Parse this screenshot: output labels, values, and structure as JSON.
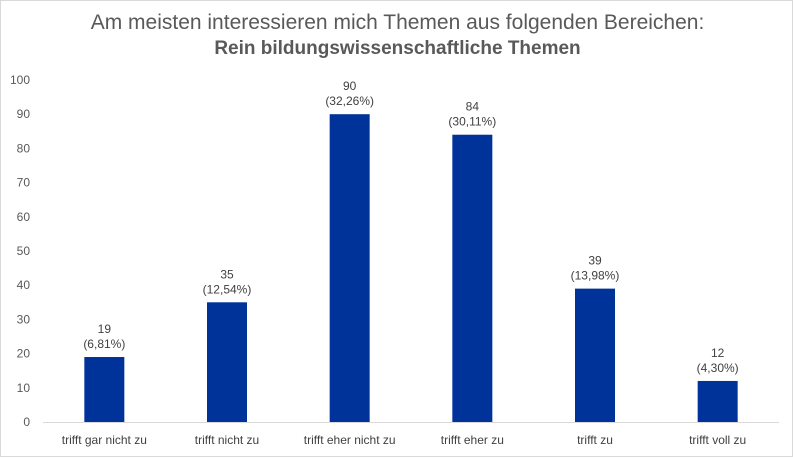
{
  "chart_data": {
    "type": "bar",
    "title": "Am meisten interessieren mich Themen aus folgenden Bereichen:",
    "subtitle": "Rein bildungswissenschaftliche Themen",
    "categories": [
      "trifft gar nicht zu",
      "trifft nicht zu",
      "trifft eher nicht zu",
      "trifft eher zu",
      "trifft zu",
      "trifft voll zu"
    ],
    "values": [
      19,
      35,
      90,
      84,
      39,
      12
    ],
    "data_labels": [
      "19",
      "35",
      "90",
      "84",
      "39",
      "12"
    ],
    "percent_labels": [
      "(6,81%)",
      "(12,54%)",
      "(32,26%)",
      "(30,11%)",
      "(13,98%)",
      "(4,30%)"
    ],
    "y_ticks": [
      "0",
      "10",
      "20",
      "30",
      "40",
      "50",
      "60",
      "70",
      "80",
      "90",
      "100"
    ],
    "ylim": [
      0,
      100
    ],
    "xlabel": "",
    "ylabel": "",
    "grid": false,
    "legend": "none",
    "bar_color": "#003399"
  }
}
